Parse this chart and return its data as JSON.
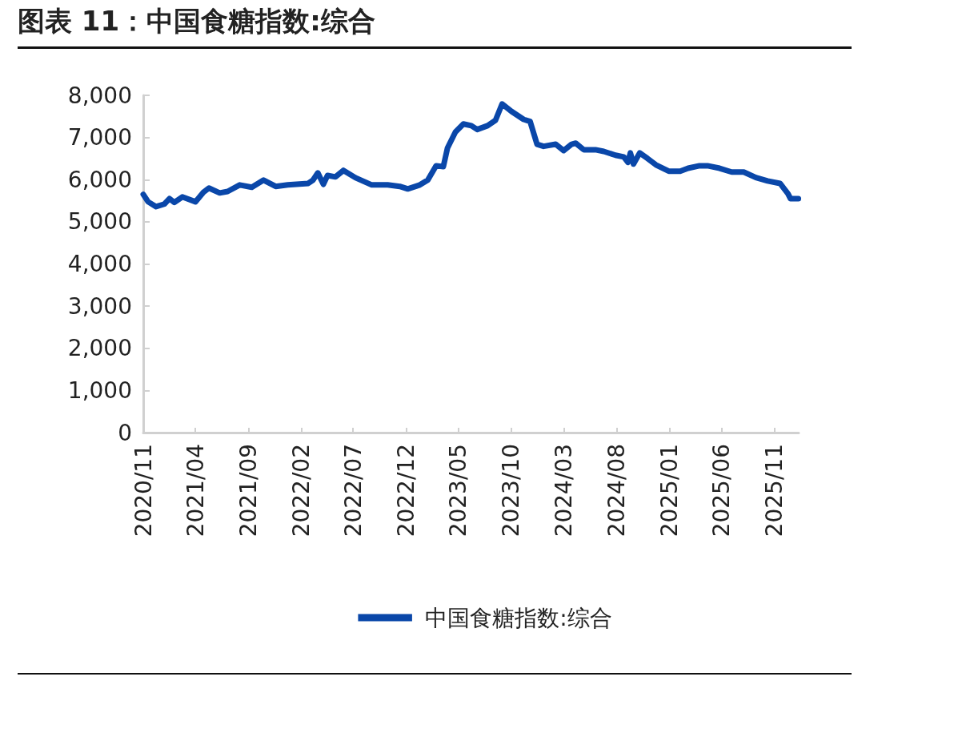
{
  "chart_data": {
    "type": "line",
    "title": "图表 11：中国食糖指数:综合",
    "x": [
      "2020-11-01",
      "2020-11-15",
      "2020-12-08",
      "2021-01-01",
      "2021-01-16",
      "2021-01-30",
      "2021-02-22",
      "2021-04-01",
      "2021-04-24",
      "2021-05-10",
      "2021-06-10",
      "2021-07-03",
      "2021-08-07",
      "2021-09-11",
      "2021-10-15",
      "2021-11-19",
      "2021-12-24",
      "2022-02-21",
      "2022-03-07",
      "2022-03-21",
      "2022-04-06",
      "2022-04-18",
      "2022-05-11",
      "2022-06-03",
      "2022-07-08",
      "2022-08-24",
      "2022-10-09",
      "2022-11-13",
      "2022-12-06",
      "2023-01-10",
      "2023-02-02",
      "2023-02-26",
      "2023-03-19",
      "2023-03-31",
      "2023-04-23",
      "2023-05-16",
      "2023-06-08",
      "2023-06-25",
      "2023-07-25",
      "2023-08-17",
      "2023-09-05",
      "2023-10-02",
      "2023-11-06",
      "2023-11-25",
      "2023-12-15",
      "2024-01-03",
      "2024-02-07",
      "2024-03-01",
      "2024-03-24",
      "2024-04-05",
      "2024-04-28",
      "2024-06-01",
      "2024-06-25",
      "2024-07-29",
      "2024-08-22",
      "2024-09-03",
      "2024-09-10",
      "2024-09-19",
      "2024-10-07",
      "2024-10-30",
      "2024-11-23",
      "2024-12-30",
      "2025-02-01",
      "2025-02-24",
      "2025-03-29",
      "2025-04-21",
      "2025-05-26",
      "2025-06-30",
      "2025-08-04",
      "2025-09-08",
      "2025-10-12",
      "2025-11-17",
      "2025-12-10",
      "2025-12-17",
      "2026-01-09"
    ],
    "series": [
      {
        "name": "中国食糖指数:综合",
        "color": "#0a47a9",
        "values": [
          5650,
          5475,
          5360,
          5420,
          5550,
          5460,
          5590,
          5475,
          5700,
          5800,
          5685,
          5720,
          5875,
          5820,
          5990,
          5840,
          5875,
          5910,
          5990,
          6160,
          5890,
          6100,
          6065,
          6220,
          6045,
          5875,
          5875,
          5840,
          5780,
          5875,
          5990,
          6330,
          6310,
          6750,
          7130,
          7320,
          7280,
          7190,
          7280,
          7410,
          7795,
          7620,
          7430,
          7380,
          6840,
          6790,
          6840,
          6690,
          6840,
          6865,
          6710,
          6710,
          6670,
          6580,
          6540,
          6410,
          6635,
          6370,
          6635,
          6500,
          6350,
          6200,
          6200,
          6270,
          6330,
          6330,
          6270,
          6180,
          6180,
          6050,
          5970,
          5910,
          5665,
          5550,
          5550
        ]
      }
    ],
    "xlim": [
      "2020-11-01",
      "2026-01-10"
    ],
    "xticks": [
      {
        "value": "2020-11-01",
        "label": "2020/11"
      },
      {
        "value": "2021-04-01",
        "label": "2021/04"
      },
      {
        "value": "2021-09-01",
        "label": "2021/09"
      },
      {
        "value": "2022-02-01",
        "label": "2022/02"
      },
      {
        "value": "2022-07-01",
        "label": "2022/07"
      },
      {
        "value": "2022-12-01",
        "label": "2022/12"
      },
      {
        "value": "2023-05-01",
        "label": "2023/05"
      },
      {
        "value": "2023-10-01",
        "label": "2023/10"
      },
      {
        "value": "2024-03-01",
        "label": "2024/03"
      },
      {
        "value": "2024-08-01",
        "label": "2024/08"
      },
      {
        "value": "2025-01-01",
        "label": "2025/01"
      },
      {
        "value": "2025-06-01",
        "label": "2025/06"
      },
      {
        "value": "2025-11-01",
        "label": "2025/11"
      }
    ],
    "ylim": [
      0,
      8000
    ],
    "yticks": [
      {
        "value": 0,
        "label": "0"
      },
      {
        "value": 1000,
        "label": "1,000"
      },
      {
        "value": 2000,
        "label": "2,000"
      },
      {
        "value": 3000,
        "label": "3,000"
      },
      {
        "value": 4000,
        "label": "4,000"
      },
      {
        "value": 5000,
        "label": "5,000"
      },
      {
        "value": 6000,
        "label": "6,000"
      },
      {
        "value": 7000,
        "label": "7,000"
      },
      {
        "value": 8000,
        "label": "8,000"
      }
    ],
    "grid": false,
    "legend": "bottom",
    "marker": "none",
    "line_style": "solid"
  }
}
